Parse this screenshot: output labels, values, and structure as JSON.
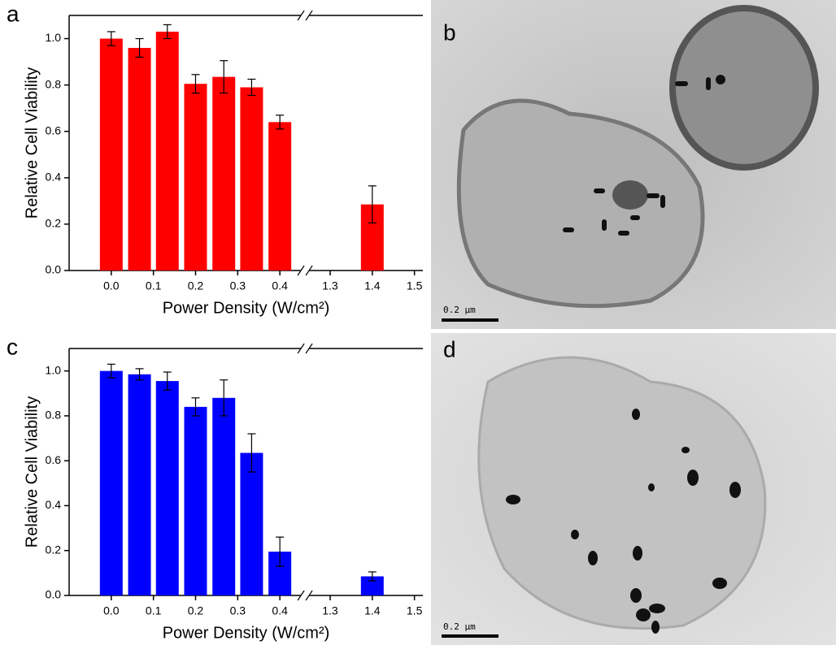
{
  "chart_data": [
    {
      "type": "bar",
      "panel_label": "a",
      "y_label": "Relative Cell Viability",
      "x_label": "Power Density (W/cm²)",
      "x": [
        0.0,
        0.067,
        0.133,
        0.2,
        0.267,
        0.333,
        0.4,
        1.4
      ],
      "values": [
        1.0,
        0.96,
        1.03,
        0.805,
        0.835,
        0.79,
        0.64,
        0.285
      ],
      "errors": [
        0.03,
        0.04,
        0.03,
        0.04,
        0.07,
        0.035,
        0.03,
        0.08
      ],
      "color": "#ff0000",
      "ylim": [
        0,
        1.1
      ],
      "xlim": [
        -0.1,
        1.52
      ],
      "xbreak": [
        0.45,
        1.25
      ],
      "yticks": [
        {
          "value": 0,
          "label": "0.0"
        },
        0.2,
        0.4,
        0.6,
        0.8,
        {
          "value": 1,
          "label": "1.0"
        }
      ],
      "xticks": [
        {
          "value": 0,
          "label": "0.0"
        },
        0.1,
        0.2,
        0.3,
        0.4,
        1.3,
        1.4,
        1.5
      ]
    },
    {
      "type": "bar",
      "panel_label": "c",
      "y_label": "Relative Cell Viability",
      "x_label": "Power Density (W/cm²)",
      "x": [
        0.0,
        0.067,
        0.133,
        0.2,
        0.267,
        0.333,
        0.4,
        1.4
      ],
      "values": [
        1.0,
        0.985,
        0.955,
        0.84,
        0.88,
        0.635,
        0.195,
        0.085
      ],
      "errors": [
        0.03,
        0.025,
        0.04,
        0.04,
        0.08,
        0.085,
        0.065,
        0.02
      ],
      "color": "#0000ff",
      "ylim": [
        0,
        1.1
      ],
      "xlim": [
        -0.1,
        1.52
      ],
      "xbreak": [
        0.45,
        1.25
      ],
      "yticks": [
        {
          "value": 0,
          "label": "0.0"
        },
        0.2,
        0.4,
        0.6,
        0.8,
        {
          "value": 1,
          "label": "1.0"
        }
      ],
      "xticks": [
        {
          "value": 0,
          "label": "0.0"
        },
        0.1,
        0.2,
        0.3,
        0.4,
        1.3,
        1.4,
        1.5
      ]
    }
  ],
  "images": [
    {
      "label": "b",
      "scale_bar": "0.2 μm"
    },
    {
      "label": "d",
      "scale_bar": "0.2 μm"
    }
  ]
}
